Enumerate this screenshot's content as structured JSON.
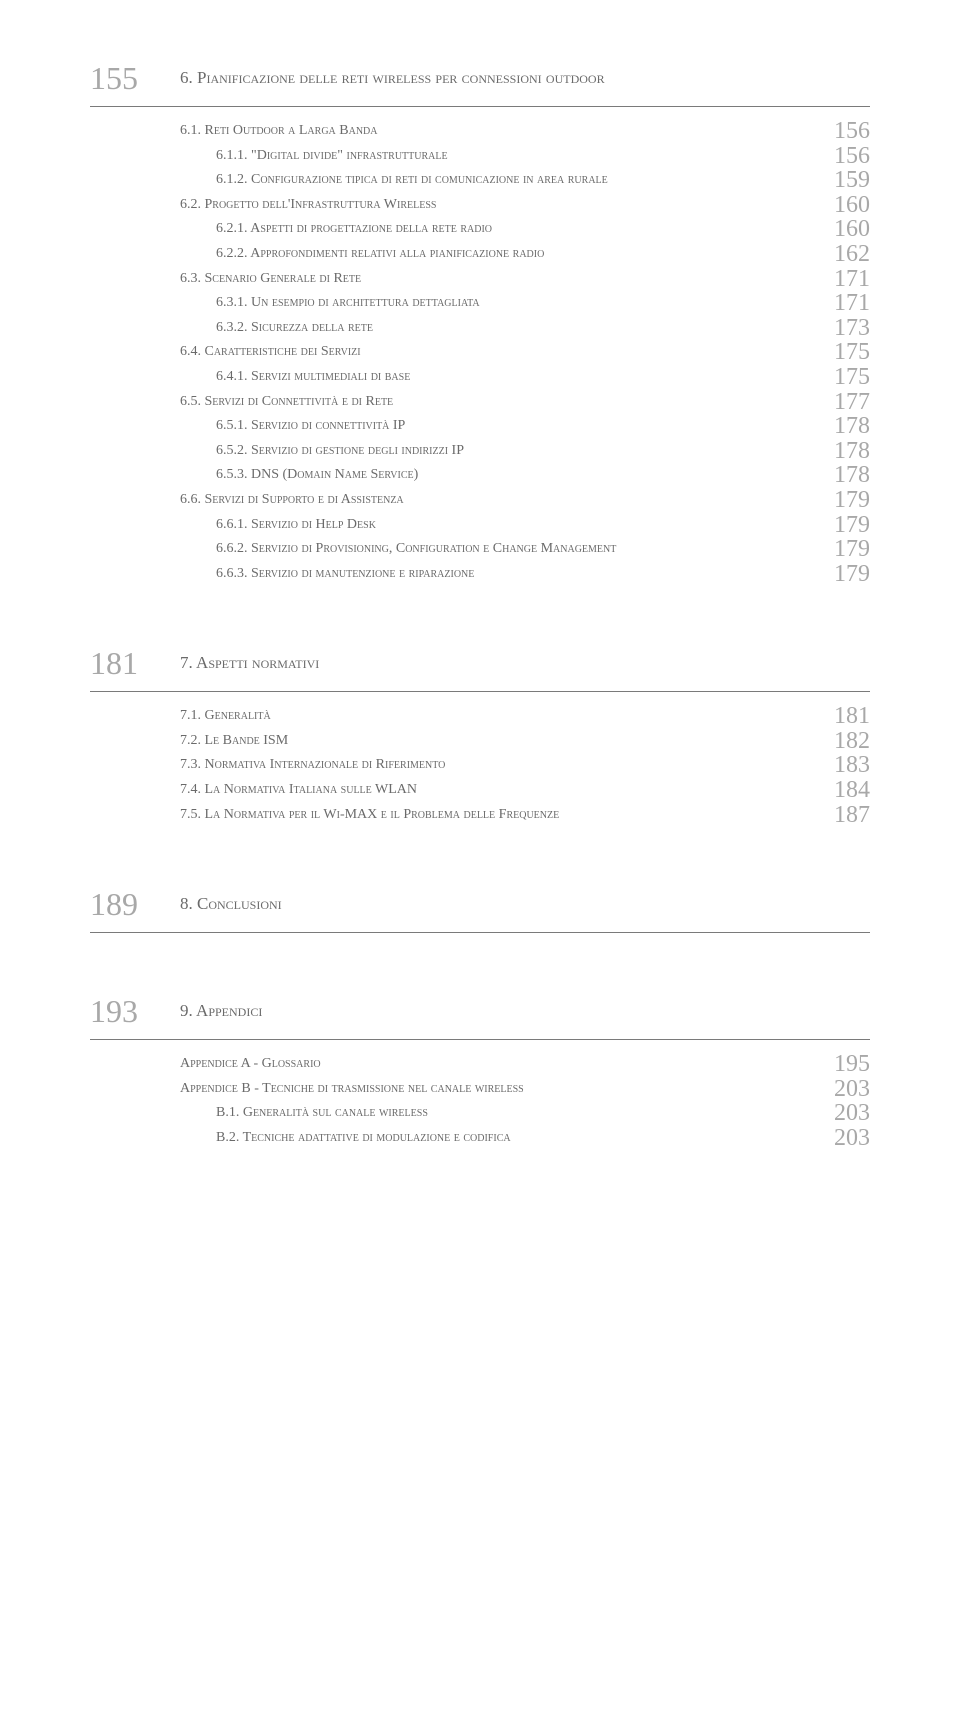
{
  "colors": {
    "text": "#6a6a6a",
    "pageNum": "#a8a8a8",
    "rule": "#7a7a7a",
    "background": "#ffffff"
  },
  "typography": {
    "bodyFontSize": 14,
    "chapterNumFontSize": 32,
    "pageNumFontSize": 24
  },
  "chapters": [
    {
      "num": "155",
      "title": "6. Pianificazione delle reti wireless per connessioni outdoor",
      "items": [
        {
          "level": 1,
          "label": "6.1. Reti Outdoor a Larga Banda",
          "page": "156"
        },
        {
          "level": 2,
          "label": "6.1.1. \"Digital divide\" infrastrutturale",
          "page": "156"
        },
        {
          "level": 2,
          "label": "6.1.2. Configurazione tipica di reti di comunicazione in area rurale",
          "page": "159"
        },
        {
          "level": 1,
          "label": "6.2. Progetto dell'Infrastruttura Wireless",
          "page": "160"
        },
        {
          "level": 2,
          "label": "6.2.1. Aspetti di progettazione della rete radio",
          "page": "160"
        },
        {
          "level": 2,
          "label": "6.2.2. Approfondimenti relativi alla pianificazione radio",
          "page": "162"
        },
        {
          "level": 1,
          "label": "6.3. Scenario Generale di Rete",
          "page": "171"
        },
        {
          "level": 2,
          "label": "6.3.1. Un esempio di architettura dettagliata",
          "page": "171"
        },
        {
          "level": 2,
          "label": "6.3.2. Sicurezza della rete",
          "page": "173"
        },
        {
          "level": 1,
          "label": "6.4. Caratteristiche dei Servizi",
          "page": "175"
        },
        {
          "level": 2,
          "label": "6.4.1. Servizi multimediali di base",
          "page": "175"
        },
        {
          "level": 1,
          "label": "6.5. Servizi di Connettività e di Rete",
          "page": "177"
        },
        {
          "level": 2,
          "label": "6.5.1. Servizio di connettività IP",
          "page": "178"
        },
        {
          "level": 2,
          "label": "6.5.2. Servizio di gestione degli indirizzi IP",
          "page": "178"
        },
        {
          "level": 2,
          "label": "6.5.3. DNS (Domain Name Service)",
          "page": "178"
        },
        {
          "level": 1,
          "label": "6.6. Servizi di Supporto e di Assistenza",
          "page": "179"
        },
        {
          "level": 2,
          "label": "6.6.1. Servizio di Help Desk",
          "page": "179"
        },
        {
          "level": 2,
          "label": "6.6.2. Servizio di Provisioning, Configuration e Change Management",
          "page": "179"
        },
        {
          "level": 2,
          "label": "6.6.3. Servizio di manutenzione e riparazione",
          "page": "179"
        }
      ]
    },
    {
      "num": "181",
      "title": "7. Aspetti normativi",
      "items": [
        {
          "level": 1,
          "label": "7.1. Generalità",
          "page": "181"
        },
        {
          "level": 1,
          "label": "7.2. Le Bande ISM",
          "page": "182"
        },
        {
          "level": 1,
          "label": "7.3. Normativa Internazionale di Riferimento",
          "page": "183"
        },
        {
          "level": 1,
          "label": "7.4. La Normativa Italiana sulle WLAN",
          "page": "184"
        },
        {
          "level": 1,
          "label": "7.5. La Normativa per il Wi-MAX e il Problema delle Frequenze",
          "page": "187"
        }
      ]
    },
    {
      "num": "189",
      "title": "8. Conclusioni",
      "items": []
    },
    {
      "num": "193",
      "title": "9. Appendici",
      "items": [
        {
          "level": 1,
          "label": "Appendice A - Glossario",
          "page": "195"
        },
        {
          "level": 1,
          "label": "Appendice B - Tecniche di trasmissione nel canale wireless",
          "page": "203"
        },
        {
          "level": 2,
          "label": "B.1.  Generalità sul canale wireless",
          "page": "203"
        },
        {
          "level": 2,
          "label": "B.2.  Tecniche adattative di modulazione e codifica",
          "page": "203"
        }
      ]
    }
  ]
}
